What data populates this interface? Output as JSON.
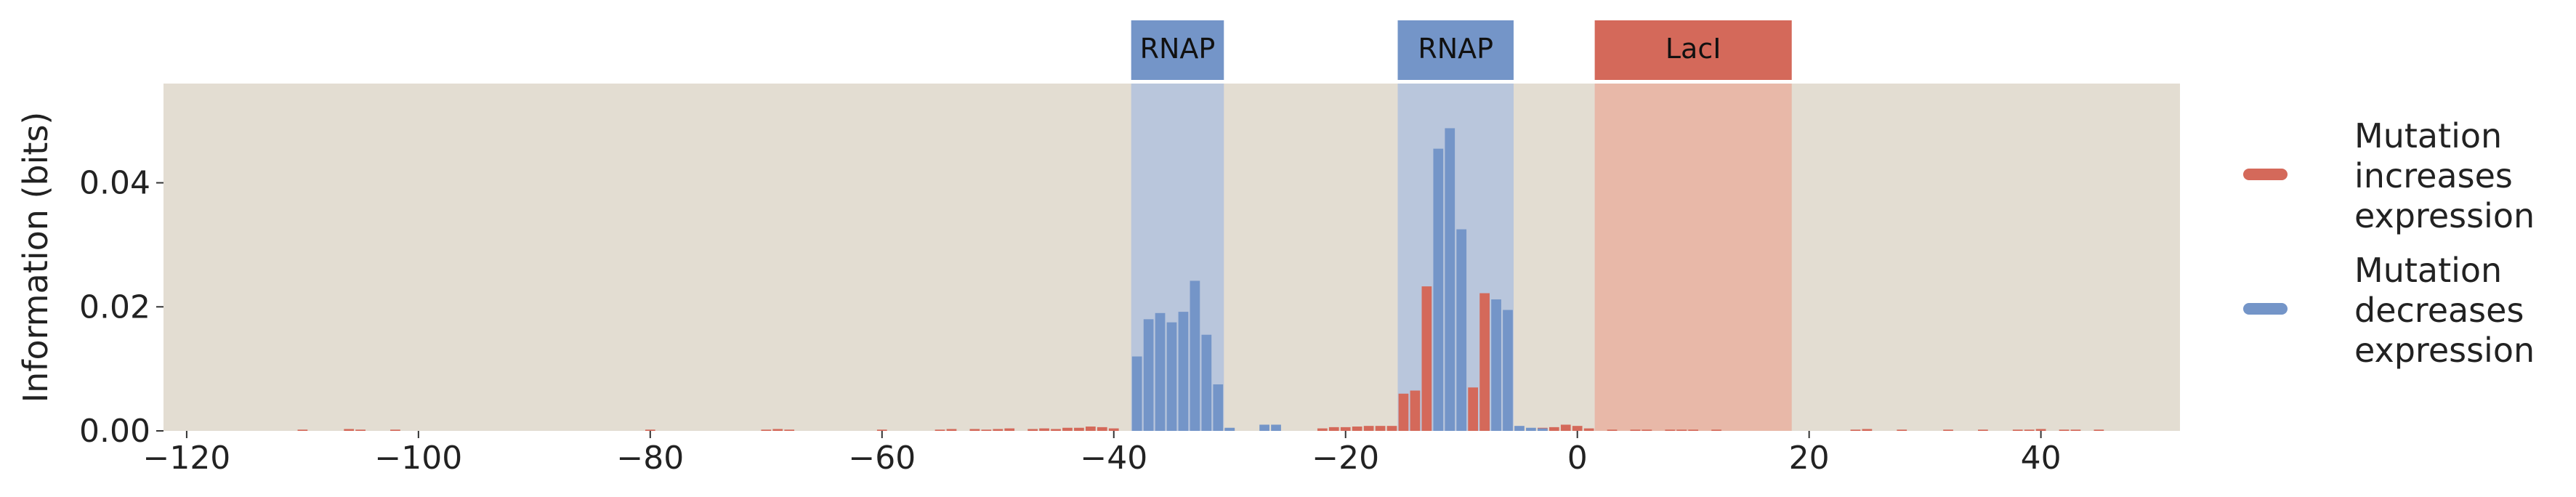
{
  "chart_data": {
    "type": "bar",
    "title": "",
    "xlabel": "",
    "ylabel": "Information (bits)",
    "xlim": [
      -122,
      52
    ],
    "ylim": [
      0,
      0.056
    ],
    "x_ticks": [
      -120,
      -100,
      -80,
      -60,
      -40,
      -20,
      0,
      20,
      40
    ],
    "x_tick_labels": [
      "−120",
      "−100",
      "−80",
      "−60",
      "−40",
      "−20",
      "0",
      "20",
      "40"
    ],
    "y_ticks": [
      0,
      0.02,
      0.04
    ],
    "y_tick_labels": [
      "0.00",
      "0.02",
      "0.04"
    ],
    "grid": false,
    "legend_position": "right",
    "background_color": "#e3ddd2",
    "colors": {
      "increase": "#d4695a",
      "decrease": "#7495c8"
    },
    "legend": [
      {
        "key": "increase",
        "lines": [
          "Mutation",
          "increases",
          "expression"
        ]
      },
      {
        "key": "decrease",
        "lines": [
          "Mutation",
          "decreases",
          "expression"
        ]
      }
    ],
    "regions": [
      {
        "label": "RNAP",
        "start": -38.5,
        "end": -30.5,
        "color": "#7495c8",
        "shade": "#b9c6dc"
      },
      {
        "label": "RNAP",
        "start": -15.5,
        "end": -5.5,
        "color": "#7495c8",
        "shade": "#b9c6dc"
      },
      {
        "label": "LacI",
        "start": 1.5,
        "end": 18.5,
        "color": "#d4695a",
        "shade": "#e8b8a8"
      }
    ],
    "series": [
      {
        "key": "increase",
        "x": [
          -110,
          -106,
          -105,
          -102,
          -80,
          -70,
          -69,
          -68,
          -60,
          -55,
          -54,
          -52,
          -51,
          -50,
          -49,
          -47,
          -46,
          -45,
          -44,
          -43,
          -42,
          -41,
          -40,
          -30,
          -22,
          -21,
          -20,
          -19,
          -18,
          -17,
          -16,
          -15,
          -14,
          -13,
          -9,
          -8,
          -3,
          -2,
          -1,
          0,
          1,
          3,
          5,
          6,
          8,
          9,
          10,
          12,
          24,
          25,
          28,
          32,
          35,
          38,
          39,
          40,
          42,
          43,
          45
        ],
        "values": [
          0.0002,
          0.0003,
          0.0002,
          0.0002,
          0.0002,
          0.0002,
          0.0003,
          0.0002,
          0.0002,
          0.0002,
          0.0003,
          0.0003,
          0.0002,
          0.0003,
          0.0004,
          0.0003,
          0.0004,
          0.0003,
          0.0005,
          0.0005,
          0.0007,
          0.0006,
          0.0004,
          0.0004,
          0.0004,
          0.0006,
          0.0006,
          0.0007,
          0.0008,
          0.0008,
          0.0008,
          0.006,
          0.0065,
          0.0233,
          0.007,
          0.0222,
          0.0005,
          0.0006,
          0.001,
          0.0008,
          0.0004,
          0.0002,
          0.0002,
          0.0002,
          0.0002,
          0.0002,
          0.0002,
          0.0002,
          0.0002,
          0.0003,
          0.0002,
          0.0002,
          0.0002,
          0.0002,
          0.0002,
          0.0003,
          0.0002,
          0.0002,
          0.0002
        ]
      },
      {
        "key": "decrease",
        "x": [
          -38,
          -37,
          -36,
          -35,
          -34,
          -33,
          -32,
          -31,
          -30,
          -27,
          -26,
          -12,
          -11,
          -10,
          -7,
          -6,
          -5,
          -4,
          -3
        ],
        "values": [
          0.012,
          0.018,
          0.019,
          0.0175,
          0.0192,
          0.0242,
          0.0155,
          0.0075,
          0.0005,
          0.001,
          0.001,
          0.0455,
          0.0488,
          0.0325,
          0.0212,
          0.0195,
          0.0008,
          0.0005,
          0.0004
        ]
      }
    ]
  }
}
